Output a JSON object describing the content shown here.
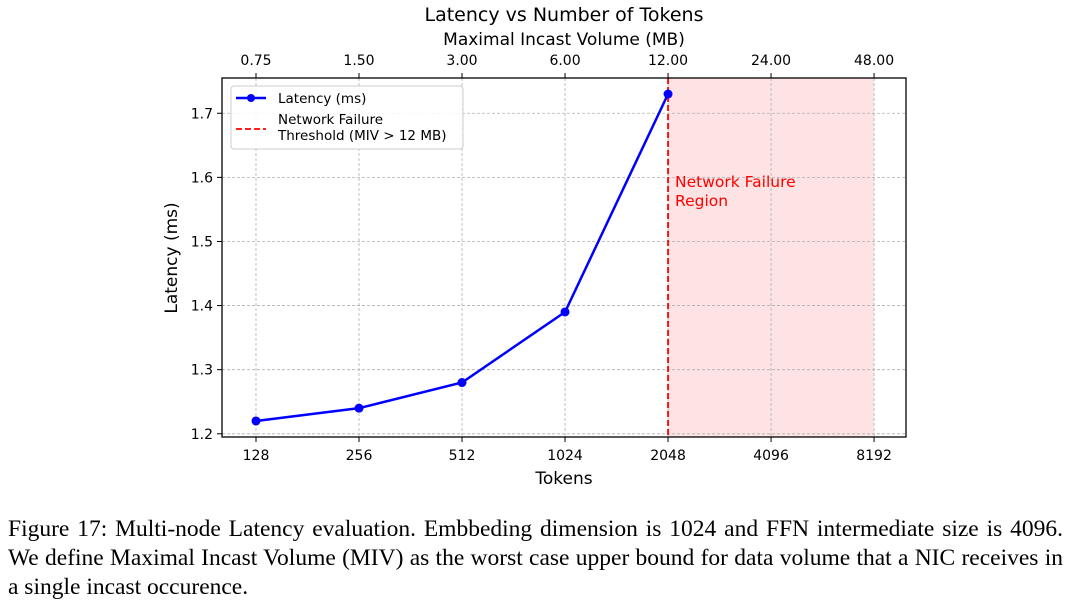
{
  "chart_data": {
    "type": "line",
    "title": "Latency vs Number of Tokens",
    "xlabel": "Tokens",
    "ylabel": "Latency (ms)",
    "top_xlabel": "Maximal Incast Volume (MB)",
    "x_scale": "log2",
    "categories": [
      "128",
      "256",
      "512",
      "1024",
      "2048",
      "4096",
      "8192"
    ],
    "x_ticks": [
      128,
      256,
      512,
      1024,
      2048,
      4096,
      8192
    ],
    "top_x_ticks": [
      "0.75",
      "1.50",
      "3.00",
      "6.00",
      "12.00",
      "24.00",
      "48.00"
    ],
    "y_ticks": [
      "1.2",
      "1.3",
      "1.4",
      "1.5",
      "1.6",
      "1.7"
    ],
    "ylim": [
      1.195,
      1.755
    ],
    "grid": true,
    "legend_position": "top-left",
    "series": [
      {
        "name": "Latency (ms)",
        "x": [
          128,
          256,
          512,
          1024,
          2048
        ],
        "values": [
          1.22,
          1.24,
          1.28,
          1.39,
          1.73
        ],
        "color": "#0000ff",
        "marker": "circle"
      }
    ],
    "threshold": {
      "name": "Network Failure Threshold (MIV > 12 MB)",
      "x": 2048,
      "color": "#ff0000",
      "style": "dashed"
    },
    "region": {
      "label_line1": "Network Failure",
      "label_line2": "Region",
      "x_start": 2048,
      "x_end": 8192,
      "color": "#fde3e3"
    },
    "legend": {
      "line1": "Latency (ms)",
      "line2a": "Network Failure",
      "line2b": "Threshold (MIV > 12 MB)"
    }
  },
  "caption": "Figure 17: Multi-node Latency evaluation. Embbeding dimension is 1024 and FFN intermediate size is 4096. We define Maximal Incast Volume (MIV) as the worst case upper bound for data volume that a NIC receives in a single incast occurence."
}
